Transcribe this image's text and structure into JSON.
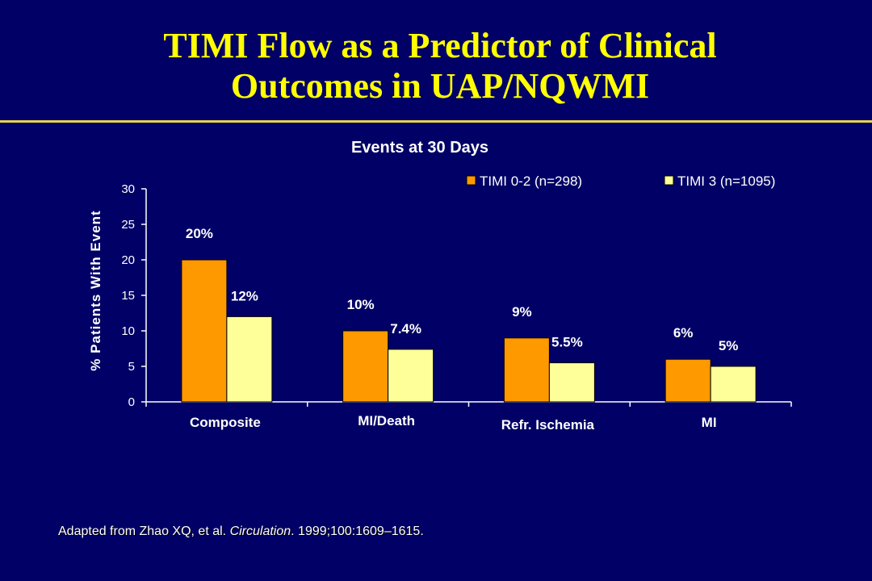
{
  "slide": {
    "title_line1": "TIMI Flow as a Predictor of Clinical",
    "title_line2": "Outcomes in UAP/NQWMI",
    "citation_prefix": "Adapted from Zhao XQ, et al. ",
    "citation_journal": "Circulation",
    "citation_suffix": ". 1999;100:1609–1615."
  },
  "colors": {
    "background": "#000066",
    "title": "#ffff00",
    "series1": "#ff9900",
    "series2": "#ffff99",
    "text": "#ffffff"
  },
  "chart_data": {
    "type": "bar",
    "title": "Events at 30 Days",
    "ylabel": "% Patients With Event",
    "xlabel": "",
    "ylim": [
      0,
      30
    ],
    "yticks": [
      0,
      5,
      10,
      15,
      20,
      25,
      30
    ],
    "categories": [
      "Composite",
      "MI/Death",
      "Refr. Ischemia",
      "MI"
    ],
    "series": [
      {
        "name": "TIMI 0-2 (n=298)",
        "values": [
          20,
          10,
          9,
          6
        ],
        "labels": [
          "20%",
          "10%",
          "9%",
          "6%"
        ]
      },
      {
        "name": "TIMI 3 (n=1095)",
        "values": [
          12,
          7.4,
          5.5,
          5
        ],
        "labels": [
          "12%",
          "7.4%",
          "5.5%",
          "5%"
        ]
      }
    ],
    "legend": "top-right",
    "grid": false
  }
}
